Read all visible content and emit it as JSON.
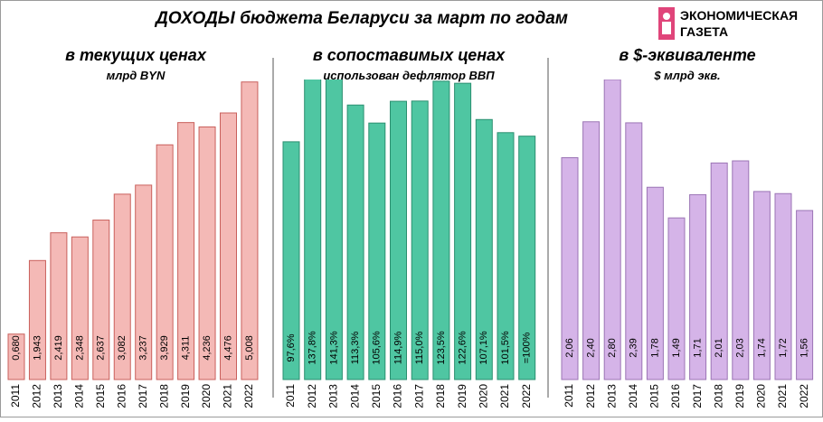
{
  "header": {
    "title": "ДОХОДЫ бюджета Беларуси за март по годам",
    "logo_line1": "ЭКОНОМИЧЕСКАЯ",
    "logo_line2": "ГАЗЕТА"
  },
  "chart_data": [
    {
      "type": "bar",
      "title": "в текущих ценах",
      "subtitle": "млрд BYN",
      "categories": [
        "2011",
        "2012",
        "2013",
        "2014",
        "2015",
        "2016",
        "2017",
        "2018",
        "2019",
        "2020",
        "2021",
        "2022"
      ],
      "values": [
        0.68,
        1.943,
        2.419,
        2.348,
        2.637,
        3.082,
        3.237,
        3.929,
        4.311,
        4.236,
        4.476,
        5.008
      ],
      "value_labels": [
        "0,680",
        "1,943",
        "2,419",
        "2,348",
        "2,637",
        "3,082",
        "3,237",
        "3,929",
        "4,311",
        "4,236",
        "4,476",
        "5,008"
      ],
      "color": "#f4b9b6",
      "ylim": [
        -0.1,
        5.05
      ]
    },
    {
      "type": "bar",
      "title": "в сопоставимых ценах",
      "subtitle": "использован дефлятор ВВП",
      "categories": [
        "2011",
        "2012",
        "2013",
        "2014",
        "2015",
        "2016",
        "2017",
        "2018",
        "2019",
        "2020",
        "2021",
        "2022"
      ],
      "values": [
        97.6,
        137.8,
        141.3,
        113.3,
        105.6,
        114.9,
        115.0,
        123.5,
        122.6,
        107.1,
        101.5,
        100
      ],
      "value_labels": [
        "97,6%",
        "137,8%",
        "141,3%",
        "113,3%",
        "105,6%",
        "114,9%",
        "115,0%",
        "123,5%",
        "122,6%",
        "107,1%",
        "101,5%",
        "=100%"
      ],
      "color": "#4fc6a2",
      "ylim": [
        -4,
        124.2
      ]
    },
    {
      "type": "bar",
      "title": "в $-эквиваленте",
      "subtitle": "$ млрд экв.",
      "categories": [
        "2011",
        "2012",
        "2013",
        "2014",
        "2015",
        "2016",
        "2017",
        "2018",
        "2019",
        "2020",
        "2021",
        "2022"
      ],
      "values": [
        2.06,
        2.4,
        2.8,
        2.39,
        1.78,
        1.49,
        1.71,
        2.01,
        2.03,
        1.74,
        1.72,
        1.56
      ],
      "value_labels": [
        "2,06",
        "2,40",
        "2,80",
        "2,39",
        "1,78",
        "1,49",
        "1,71",
        "2,01",
        "2,03",
        "1,74",
        "1,72",
        "1,56"
      ],
      "color": "#d5b4e8",
      "ylim": [
        -0.04,
        2.8
      ]
    }
  ]
}
